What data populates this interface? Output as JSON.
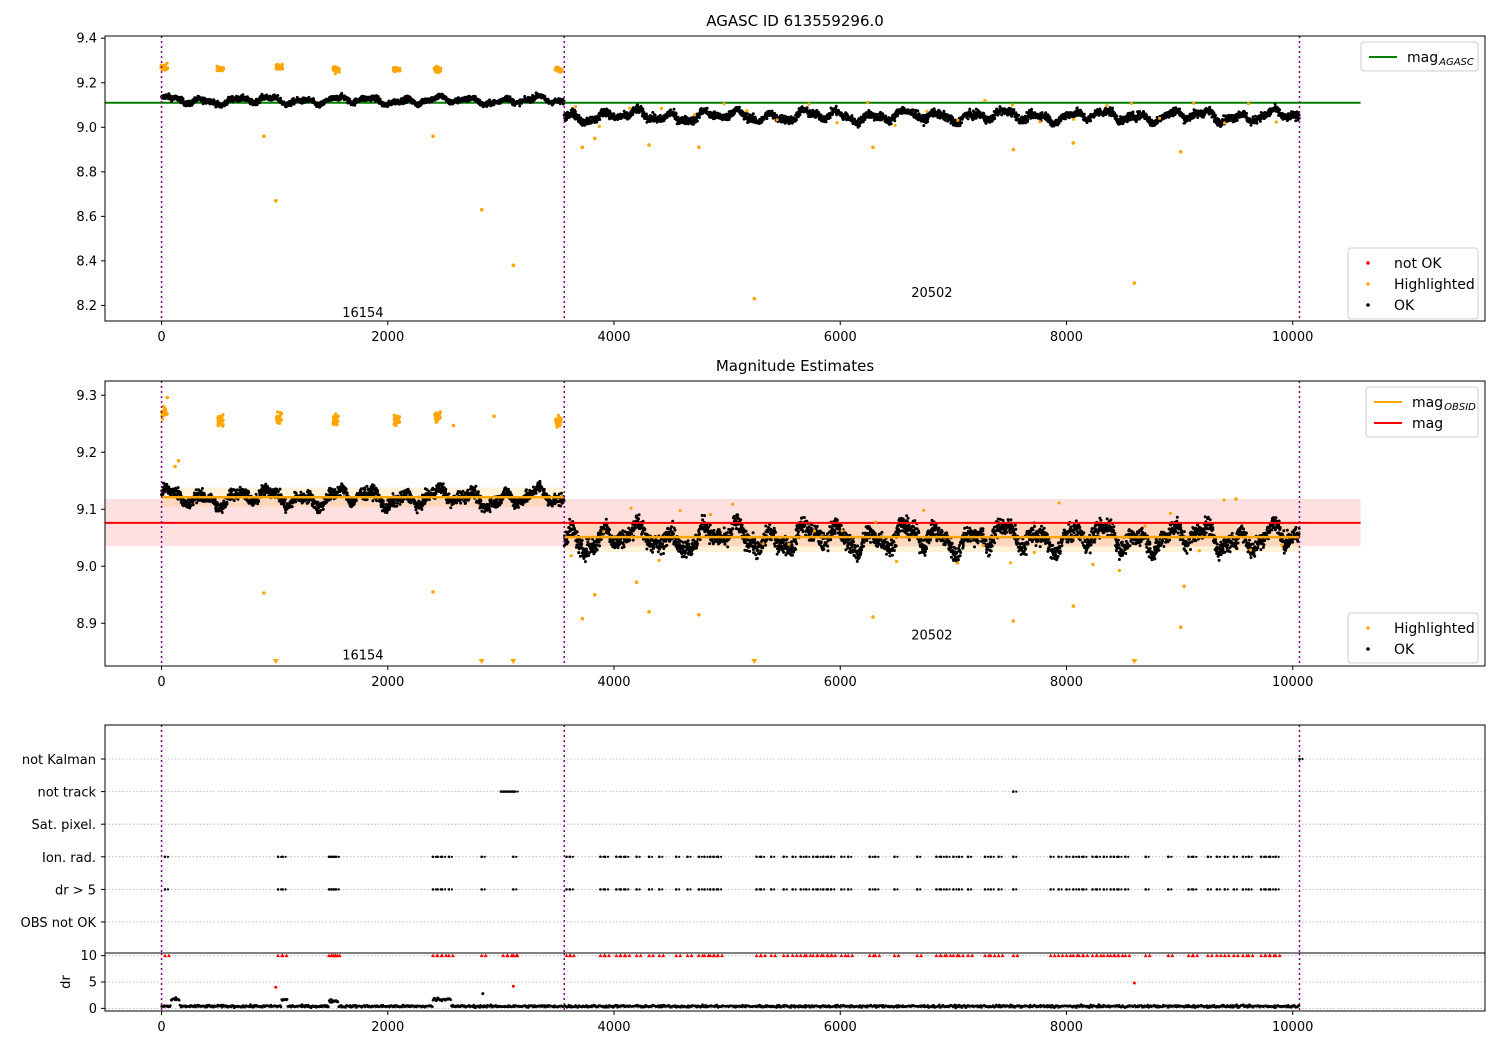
{
  "figure": {
    "background": "#ffffff"
  },
  "chart_data": [
    {
      "type": "scatter",
      "title": "AGASC ID 613559296.0",
      "xlabel": "",
      "ylabel": "",
      "xlim": [
        -500,
        11700
      ],
      "ylim": [
        8.13,
        9.41
      ],
      "xticks": [
        0,
        2000,
        4000,
        6000,
        8000,
        10000
      ],
      "xtick_labels": [
        "0",
        "2000",
        "4000",
        "6000",
        "8000",
        "10000"
      ],
      "yticks": [
        8.2,
        8.4,
        8.6,
        8.8,
        9.0,
        9.2,
        9.4
      ],
      "ytick_labels": [
        "8.2",
        "8.4",
        "8.6",
        "8.8",
        "9.0",
        "9.2",
        "9.4"
      ],
      "vlines": [
        0,
        3560,
        10060
      ],
      "obsid_annotations": [
        {
          "text": "16154",
          "x": 1780,
          "y": 8.17
        },
        {
          "text": "20502",
          "x": 6810,
          "y": 8.26
        }
      ],
      "reference_line": {
        "label": "mag_AGASC",
        "y": 9.11,
        "x_range": [
          -500,
          10600
        ],
        "color": "#008000"
      },
      "legend_top": {
        "placement": "top-right",
        "entries": [
          {
            "label": "mag",
            "sub": "AGASC",
            "color": "#008000",
            "kind": "line"
          }
        ]
      },
      "legend_bottom": {
        "placement": "bottom-right",
        "entries": [
          {
            "label": "not OK",
            "color": "#ff0000",
            "kind": "dot"
          },
          {
            "label": "Highlighted",
            "color": "#ffa500",
            "kind": "dot"
          },
          {
            "label": "OK",
            "color": "#000000",
            "kind": "dot"
          }
        ]
      },
      "ok_segments": [
        {
          "x_range": [
            0,
            3560
          ],
          "mean": 9.12,
          "spread": 0.035
        },
        {
          "x_range": [
            3560,
            10060
          ],
          "mean": 9.05,
          "spread": 0.05
        }
      ],
      "highlighted_clusters": [
        {
          "x": 25,
          "y": 9.27
        },
        {
          "x": 520,
          "y": 9.26
        },
        {
          "x": 1040,
          "y": 9.27
        },
        {
          "x": 1540,
          "y": 9.26
        },
        {
          "x": 2080,
          "y": 9.26
        },
        {
          "x": 2440,
          "y": 9.26
        },
        {
          "x": 3510,
          "y": 9.26
        }
      ],
      "highlighted_outliers": [
        {
          "x": 905,
          "y": 8.96
        },
        {
          "x": 1010,
          "y": 8.67
        },
        {
          "x": 2400,
          "y": 8.96
        },
        {
          "x": 2830,
          "y": 8.63
        },
        {
          "x": 3110,
          "y": 8.38
        },
        {
          "x": 3720,
          "y": 8.91
        },
        {
          "x": 3830,
          "y": 8.95
        },
        {
          "x": 4310,
          "y": 8.92
        },
        {
          "x": 4750,
          "y": 8.91
        },
        {
          "x": 5240,
          "y": 8.23
        },
        {
          "x": 6290,
          "y": 8.91
        },
        {
          "x": 7530,
          "y": 8.9
        },
        {
          "x": 8060,
          "y": 8.93
        },
        {
          "x": 8600,
          "y": 8.3
        },
        {
          "x": 9010,
          "y": 8.89
        }
      ]
    },
    {
      "type": "scatter",
      "title": "Magnitude Estimates",
      "xlabel": "",
      "ylabel": "",
      "xlim": [
        -500,
        11700
      ],
      "ylim": [
        8.825,
        9.325
      ],
      "xticks": [
        0,
        2000,
        4000,
        6000,
        8000,
        10000
      ],
      "xtick_labels": [
        "0",
        "2000",
        "4000",
        "6000",
        "8000",
        "10000"
      ],
      "yticks": [
        8.9,
        9.0,
        9.1,
        9.2,
        9.3
      ],
      "ytick_labels": [
        "8.9",
        "9.0",
        "9.1",
        "9.2",
        "9.3"
      ],
      "vlines": [
        0,
        3560,
        10060
      ],
      "obsid_annotations": [
        {
          "text": "16154",
          "x": 1780,
          "y": 8.845
        },
        {
          "text": "20502",
          "x": 6810,
          "y": 8.88
        }
      ],
      "mag": {
        "label": "mag",
        "y": 9.076,
        "band": [
          9.035,
          9.118
        ],
        "x_range": [
          -500,
          10600
        ],
        "color": "#ff0000"
      },
      "mag_obsid": [
        {
          "x_range": [
            0,
            3560
          ],
          "y": 9.121,
          "band": [
            9.104,
            9.138
          ]
        },
        {
          "x_range": [
            3560,
            10060
          ],
          "y": 9.051,
          "band": [
            9.025,
            9.075
          ]
        }
      ],
      "legend_top": {
        "placement": "top-right",
        "entries": [
          {
            "label": "mag",
            "sub": "OBSID",
            "color": "#ffa500",
            "kind": "line"
          },
          {
            "label": "mag",
            "sub": "",
            "color": "#ff0000",
            "kind": "line"
          }
        ]
      },
      "legend_bottom": {
        "placement": "bottom-right",
        "entries": [
          {
            "label": "Highlighted",
            "color": "#ffa500",
            "kind": "dot"
          },
          {
            "label": "OK",
            "color": "#000000",
            "kind": "dot"
          }
        ]
      },
      "highlighted_clusters": [
        {
          "x": 25,
          "y": 9.27
        },
        {
          "x": 520,
          "y": 9.255
        },
        {
          "x": 1040,
          "y": 9.262
        },
        {
          "x": 1540,
          "y": 9.257
        },
        {
          "x": 2080,
          "y": 9.257
        },
        {
          "x": 2440,
          "y": 9.262
        },
        {
          "x": 3510,
          "y": 9.255
        }
      ],
      "highlighted_outliers": [
        {
          "x": 905,
          "y": 8.953
        },
        {
          "x": 2400,
          "y": 8.955
        },
        {
          "x": 2580,
          "y": 9.247
        },
        {
          "x": 2940,
          "y": 9.263
        },
        {
          "x": 3720,
          "y": 8.908
        },
        {
          "x": 3830,
          "y": 8.95
        },
        {
          "x": 4200,
          "y": 8.972
        },
        {
          "x": 4310,
          "y": 8.92
        },
        {
          "x": 4750,
          "y": 8.915
        },
        {
          "x": 6290,
          "y": 8.911
        },
        {
          "x": 7530,
          "y": 8.904
        },
        {
          "x": 8060,
          "y": 8.93
        },
        {
          "x": 9010,
          "y": 8.893
        },
        {
          "x": 9040,
          "y": 8.965
        },
        {
          "x": 9500,
          "y": 9.118
        },
        {
          "x": 50,
          "y": 9.296
        },
        {
          "x": 150,
          "y": 9.185
        },
        {
          "x": 120,
          "y": 9.175
        }
      ],
      "offscale_markers_x": [
        1010,
        2830,
        3110,
        5240,
        8600
      ]
    },
    {
      "type": "scatter",
      "title": "",
      "xlabel": "",
      "ylabel": "",
      "xlim": [
        -500,
        11700
      ],
      "xticks": [
        0,
        2000,
        4000,
        6000,
        8000,
        10000
      ],
      "xtick_labels": [
        "0",
        "2000",
        "4000",
        "6000",
        "8000",
        "10000"
      ],
      "vlines": [
        0,
        3560,
        10060
      ],
      "flag_rows": [
        "not Kalman",
        "not track",
        "Sat. pixel.",
        "Ion. rad.",
        "dr > 5",
        "OBS not OK"
      ],
      "flag_points": {
        "not Kalman": [
          10060
        ],
        "not track": [
          3000,
          3020,
          3040,
          3060,
          3080,
          3100,
          3120,
          7530
        ],
        "Sat. pixel.": [],
        "Ion. rad.": [
          30,
          1030,
          1070,
          1480,
          1500,
          1520,
          1540,
          2400,
          2440,
          2480,
          2540,
          2830,
          3110,
          3580,
          3610,
          3880,
          3920,
          4020,
          4060,
          4100,
          4200,
          4310,
          4400,
          4550,
          4650,
          4750,
          4800,
          4850,
          4880,
          4920,
          5260,
          5300,
          5390,
          5500,
          5580,
          5650,
          5700,
          5760,
          5800,
          5850,
          5890,
          5920,
          6010,
          6070,
          6260,
          6310,
          6480,
          6680,
          6850,
          6890,
          6940,
          7000,
          7050,
          7130,
          7280,
          7330,
          7400,
          7530,
          7860,
          7930,
          8000,
          8060,
          8110,
          8150,
          8230,
          8270,
          8330,
          8390,
          8420,
          8460,
          8520,
          8700,
          8900,
          9080,
          9120,
          9250,
          9330,
          9400,
          9480,
          9560,
          9610,
          9720,
          9760,
          9800,
          9850
        ],
        "dr > 5": [
          30,
          1030,
          1070,
          1480,
          1500,
          1520,
          1540,
          2400,
          2440,
          2480,
          2540,
          2830,
          3110,
          3580,
          3610,
          3880,
          3920,
          4020,
          4060,
          4100,
          4200,
          4310,
          4400,
          4550,
          4650,
          4750,
          4800,
          4850,
          4880,
          4920,
          5260,
          5300,
          5390,
          5500,
          5580,
          5650,
          5700,
          5760,
          5800,
          5850,
          5890,
          5920,
          6010,
          6070,
          6260,
          6310,
          6480,
          6680,
          6850,
          6890,
          6940,
          7000,
          7050,
          7130,
          7280,
          7330,
          7400,
          7530,
          7860,
          7930,
          8000,
          8060,
          8110,
          8150,
          8230,
          8270,
          8330,
          8390,
          8420,
          8460,
          8520,
          8700,
          8900,
          9080,
          9120,
          9250,
          9330,
          9400,
          9480,
          9560,
          9610,
          9720,
          9760,
          9800,
          9850
        ],
        "OBS not OK": []
      },
      "grid": true
    },
    {
      "type": "scatter",
      "title": "",
      "xlabel": "",
      "ylabel": "dr",
      "xlim": [
        -500,
        11700
      ],
      "ylim": [
        -0.5,
        10.5
      ],
      "xticks": [
        0,
        2000,
        4000,
        6000,
        8000,
        10000
      ],
      "xtick_labels": [
        "0",
        "2000",
        "4000",
        "6000",
        "8000",
        "10000"
      ],
      "yticks": [
        0,
        5,
        10
      ],
      "ytick_labels": [
        "0",
        "5",
        "10"
      ],
      "vlines": [
        0,
        3560,
        10060
      ],
      "baseline_dr": 0.4,
      "dr_bumps": [
        {
          "x_range": [
            80,
            160
          ],
          "y": 1.7
        },
        {
          "x_range": [
            1060,
            1110
          ],
          "y": 1.6
        },
        {
          "x_range": [
            1480,
            1560
          ],
          "y": 1.4
        },
        {
          "x_range": [
            2400,
            2560
          ],
          "y": 1.7
        }
      ],
      "red_capped_x": [
        30,
        1030,
        1070,
        1480,
        1500,
        1520,
        1540,
        2400,
        2440,
        2480,
        2540,
        2830,
        3020,
        3060,
        3100,
        3110,
        3580,
        3610,
        3880,
        3920,
        4020,
        4060,
        4100,
        4200,
        4310,
        4400,
        4550,
        4650,
        4750,
        4800,
        4850,
        4880,
        4920,
        5260,
        5300,
        5390,
        5500,
        5580,
        5650,
        5700,
        5760,
        5800,
        5850,
        5890,
        5920,
        6010,
        6070,
        6260,
        6310,
        6480,
        6680,
        6850,
        6890,
        6940,
        7000,
        7050,
        7130,
        7280,
        7330,
        7400,
        7530,
        7860,
        7930,
        8000,
        8060,
        8110,
        8150,
        8230,
        8270,
        8330,
        8390,
        8420,
        8460,
        8520,
        8700,
        8900,
        9080,
        9120,
        9250,
        9330,
        9400,
        9480,
        9560,
        9610,
        9720,
        9760,
        9800,
        9850
      ],
      "red_points": [
        {
          "x": 1010,
          "y": 4.0
        },
        {
          "x": 3110,
          "y": 4.2
        },
        {
          "x": 8600,
          "y": 4.8
        }
      ],
      "black_points": [
        {
          "x": 2840,
          "y": 2.8
        }
      ]
    }
  ]
}
